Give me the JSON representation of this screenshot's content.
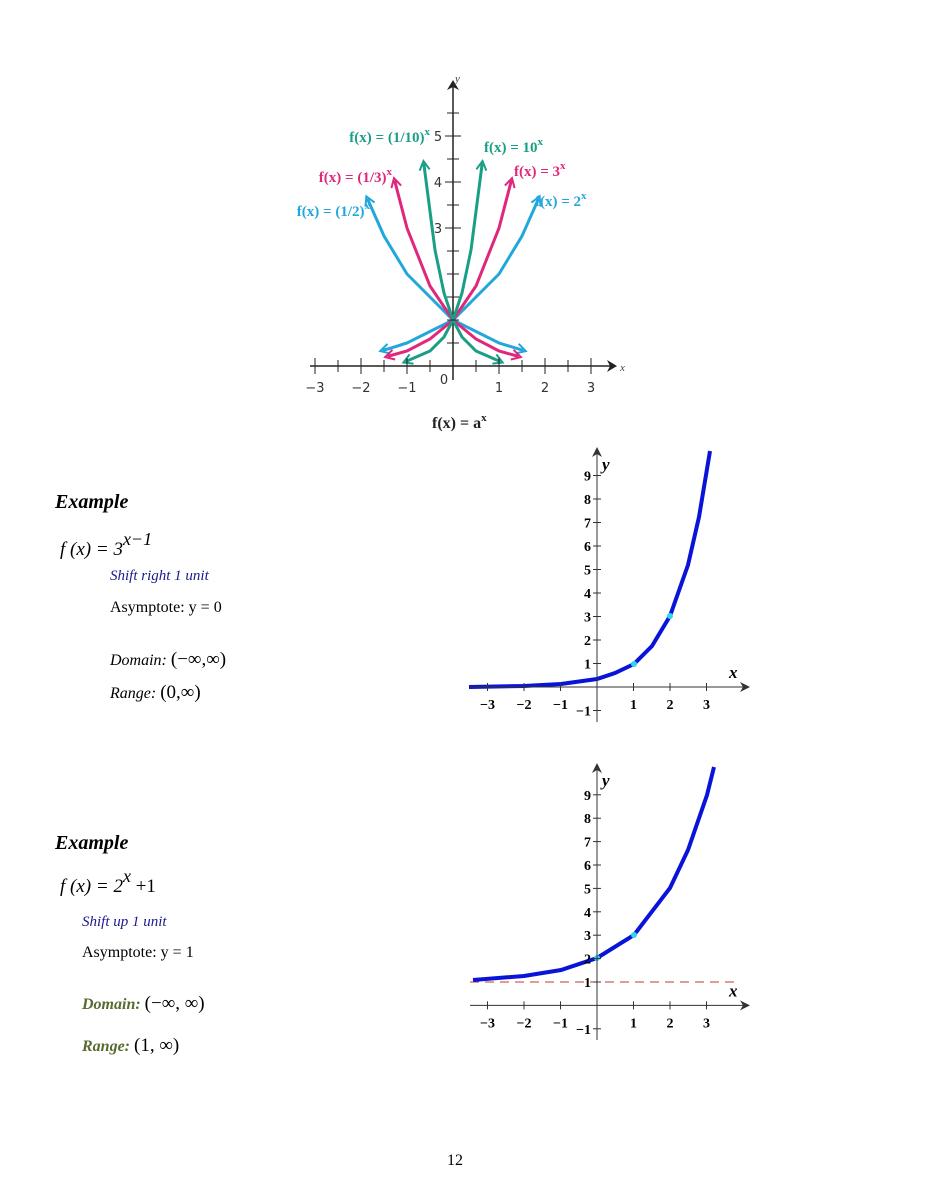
{
  "top_figure": {
    "y_axis_label": "y",
    "x_axis_label": "x",
    "xticks": [
      {
        "value": -3,
        "label": "−3"
      },
      {
        "value": -2,
        "label": "−2"
      },
      {
        "value": -1,
        "label": "−1"
      },
      0,
      1,
      2,
      3
    ],
    "yticks": [
      3,
      4,
      5
    ],
    "curve_labels": [
      {
        "text": "f(x) = (1/10)",
        "exponent": "x"
      },
      {
        "text": "f(x) = (1/3)",
        "exponent": "x"
      },
      {
        "text": "f(x) = (1/2)",
        "exponent": "x"
      },
      {
        "text": "f(x) = 10",
        "exponent": "x"
      },
      {
        "text": "f(x) = 3",
        "exponent": "x"
      },
      {
        "text": "f(x) = 2",
        "exponent": "x"
      }
    ],
    "caption": {
      "text": "f(x) = a",
      "exponent": "x"
    }
  },
  "examples": [
    {
      "heading": "Example",
      "function": {
        "text": "f (x) = 3",
        "exponent": "x−1",
        "suffix": ""
      },
      "transformation": "Shift right 1 unit",
      "asymptote": "Asymptote: y = 0",
      "domain_label": "Domain:",
      "domain": "(−∞,∞)",
      "range_label": "Range:",
      "range": "(0,∞)",
      "graph": {
        "x_axis_label": "x",
        "y_axis_label": "y",
        "xticks": [
          {
            "value": -3,
            "label": "−3"
          },
          {
            "value": -2,
            "label": "−2"
          },
          {
            "value": -1,
            "label": "−1"
          },
          1,
          2,
          3
        ],
        "yticks": [
          {
            "value": -1,
            "label": "−1"
          },
          1,
          2,
          3,
          4,
          5,
          6,
          7,
          8,
          9
        ]
      }
    },
    {
      "heading": "Example",
      "function": {
        "text": "f (x) = 2",
        "exponent": "x",
        "suffix": " +1"
      },
      "transformation": "Shift up 1 unit",
      "asymptote": "Asymptote: y = 1",
      "domain_label": "Domain:",
      "domain": "(−∞, ∞)",
      "range_label": "Range:",
      "range": "(1, ∞)",
      "graph": {
        "x_axis_label": "x",
        "y_axis_label": "y",
        "xticks": [
          {
            "value": -3,
            "label": "−3"
          },
          {
            "value": -2,
            "label": "−2"
          },
          {
            "value": -1,
            "label": "−1"
          },
          1,
          2,
          3
        ],
        "yticks": [
          {
            "value": -1,
            "label": "−1"
          },
          1,
          2,
          3,
          4,
          5,
          6,
          7,
          8,
          9
        ]
      }
    }
  ],
  "page_number": "12"
}
